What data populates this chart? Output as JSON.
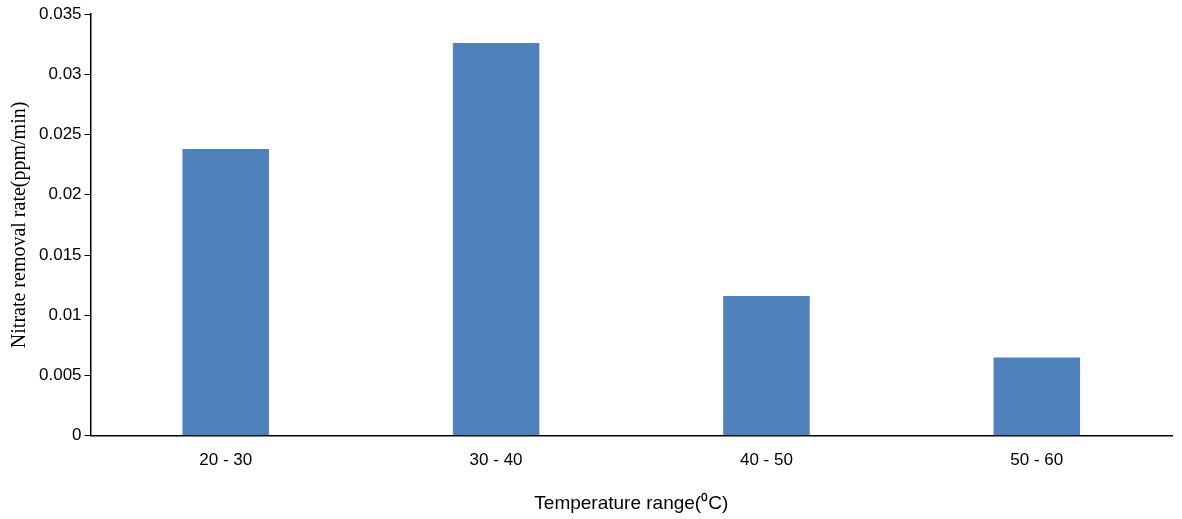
{
  "chart_data": {
    "type": "bar",
    "xlabel": "Temperature range(⁰C)",
    "ylabel": "Nitrate removal rate(ppm/min)",
    "categories": [
      "20 - 30",
      "30 - 40",
      "40 - 50",
      "50 - 60"
    ],
    "values": [
      0.0238,
      0.0326,
      0.0116,
      0.0065
    ],
    "color": "#4f81bd",
    "ylim": [
      0,
      0.035
    ],
    "yticks": [
      0,
      0.005,
      0.01,
      0.015,
      0.02,
      0.025,
      0.03,
      0.035
    ],
    "grid": false,
    "legend": false
  }
}
